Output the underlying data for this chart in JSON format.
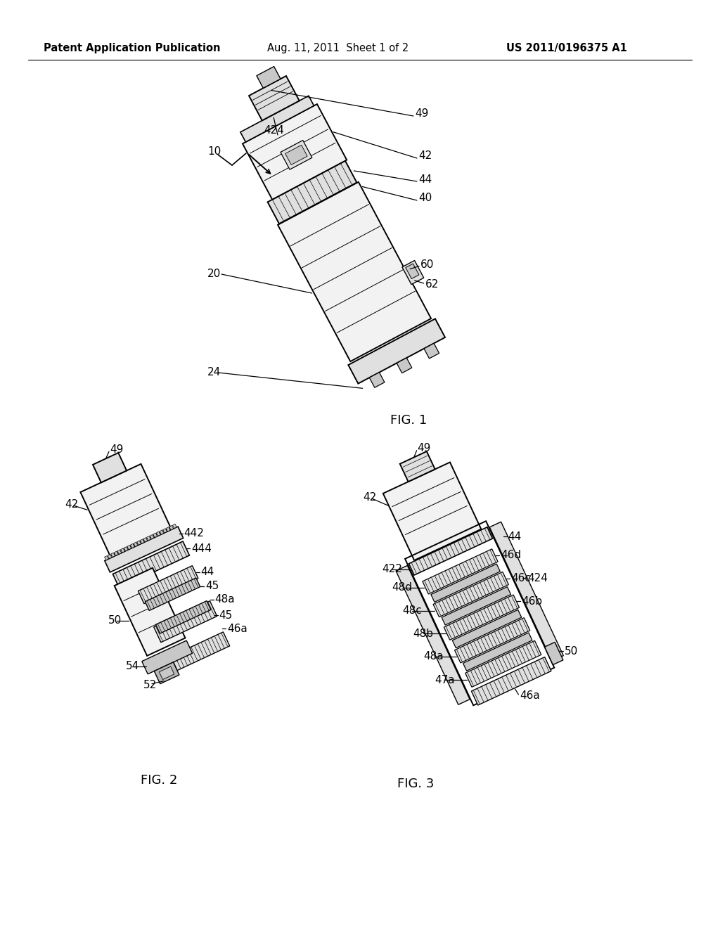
{
  "bg_color": "#ffffff",
  "header_left": "Patent Application Publication",
  "header_center": "Aug. 11, 2011  Sheet 1 of 2",
  "header_right": "US 2011/0196375 A1",
  "fig1_label": "FIG. 1",
  "fig2_label": "FIG. 2",
  "fig3_label": "FIG. 3",
  "text_color": "#000000",
  "line_color": "#000000",
  "header_fontsize": 10.5,
  "label_fontsize": 11,
  "fig_label_fontsize": 13,
  "lw_main": 1.4,
  "lw_detail": 0.7,
  "lw_leader": 0.9,
  "face_light": "#f2f2f2",
  "face_mid": "#e0e0e0",
  "face_dark": "#c8c8c8",
  "face_darker": "#b8b8b8"
}
